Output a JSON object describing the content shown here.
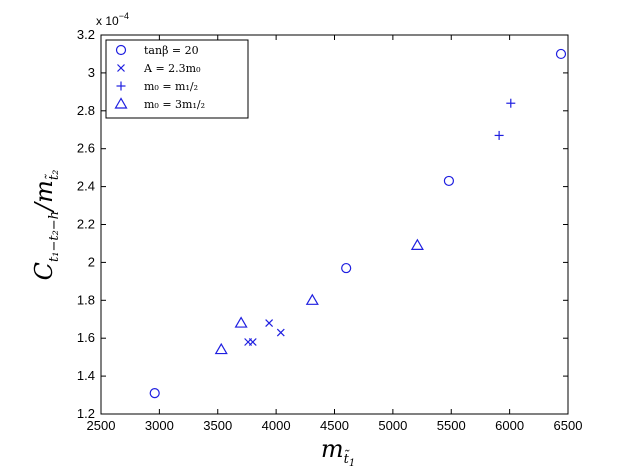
{
  "chart_data": {
    "type": "scatter",
    "xlabel": "m_{t̃1}",
    "ylabel": "C_{t1−t2−h} / m_{t̃2}",
    "y_scale_note": "x 10",
    "y_scale_exp": "−4",
    "xlim": [
      2500,
      6500
    ],
    "ylim": [
      1.2,
      3.2
    ],
    "x_ticks": [
      "2500",
      "3000",
      "3500",
      "4000",
      "4500",
      "5000",
      "5500",
      "6000",
      "6500"
    ],
    "y_ticks": [
      "1.2",
      "1.4",
      "1.6",
      "1.8",
      "2",
      "2.2",
      "2.4",
      "2.6",
      "2.8",
      "3",
      "3.2"
    ],
    "grid": false,
    "legend_position": "top-left",
    "color": "#1f1fe0",
    "series": [
      {
        "name": "tanβ = 20",
        "marker": "circle",
        "x": [
          2960,
          4600,
          5480,
          6440
        ],
        "y": [
          1.31,
          1.97,
          2.43,
          3.1
        ]
      },
      {
        "name": "A = 2.3m₀",
        "marker": "x",
        "x": [
          3760,
          3800,
          3940,
          4040
        ],
        "y": [
          1.58,
          1.58,
          1.68,
          1.63
        ]
      },
      {
        "name": "m₀ = m₁/₂",
        "marker": "plus",
        "x": [
          5910,
          6010
        ],
        "y": [
          2.67,
          2.84
        ]
      },
      {
        "name": "m₀ = 3m₁/₂",
        "marker": "triangle",
        "x": [
          3530,
          3700,
          4310,
          5210
        ],
        "y": [
          1.54,
          1.68,
          1.8,
          2.09
        ]
      }
    ]
  }
}
